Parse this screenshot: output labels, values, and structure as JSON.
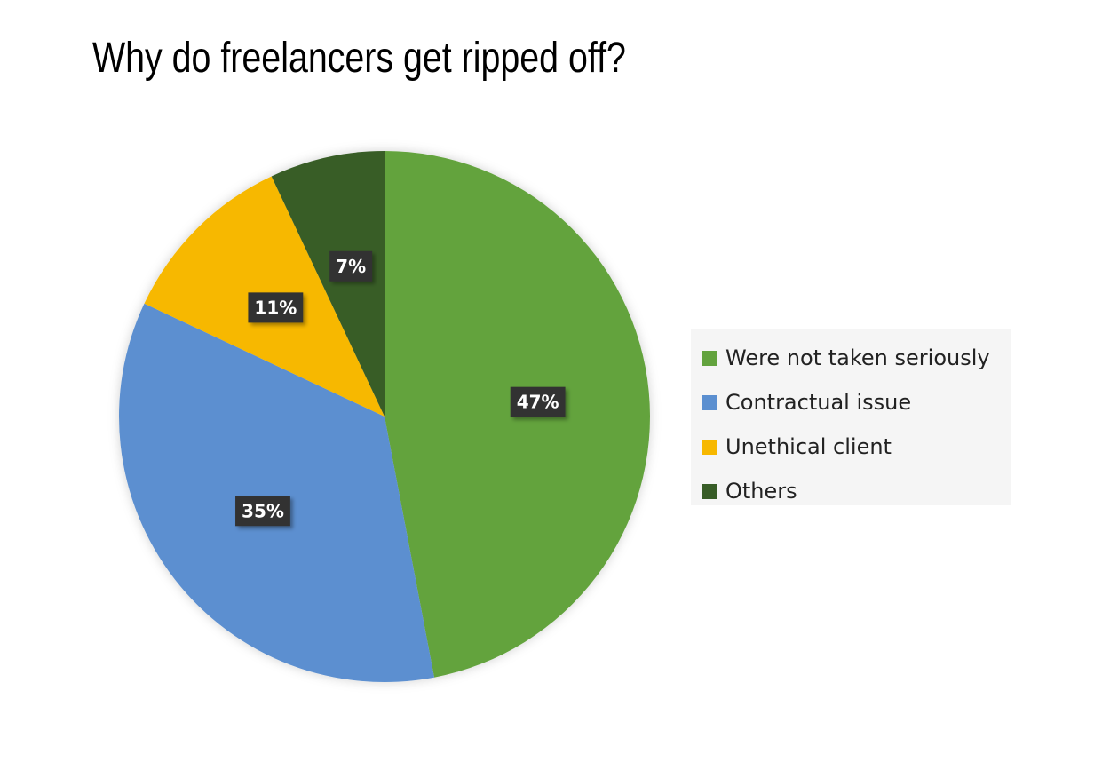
{
  "chart_data": {
    "type": "pie",
    "title": "Why do freelancers get ripped off?",
    "categories": [
      "Were not taken seriously",
      "Contractual issue",
      "Unethical client",
      "Others"
    ],
    "values": [
      47,
      35,
      11,
      7
    ],
    "data_labels": [
      "47%",
      "35%",
      "11%",
      "7%"
    ],
    "colors": [
      "#63a33e",
      "#5b8fd0",
      "#f7b800",
      "#385d27"
    ],
    "start_angle_deg": 0,
    "direction": "clockwise",
    "legend_position": "right"
  }
}
